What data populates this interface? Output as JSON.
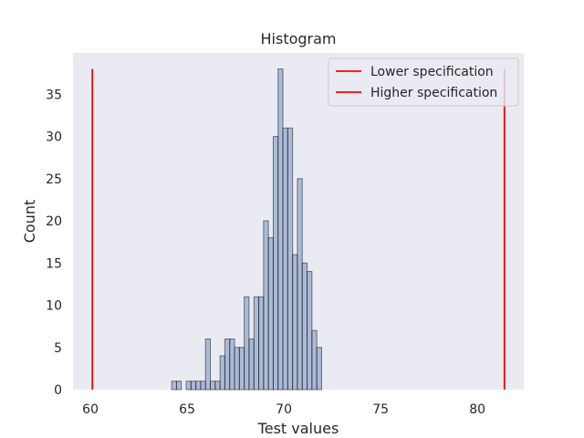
{
  "chart_data": {
    "type": "bar",
    "title": "Histogram",
    "xlabel": "Test values",
    "ylabel": "Count",
    "xlim": [
      59.1,
      82.4
    ],
    "ylim": [
      0,
      39.9
    ],
    "x_ticks": [
      60,
      65,
      70,
      75,
      80
    ],
    "y_ticks": [
      0,
      5,
      10,
      15,
      20,
      25,
      30,
      35
    ],
    "grid": false,
    "bin_width": 0.25,
    "bins": [
      {
        "x0": 64.2,
        "count": 1
      },
      {
        "x0": 64.45,
        "count": 1
      },
      {
        "x0": 64.95,
        "count": 1
      },
      {
        "x0": 65.2,
        "count": 1
      },
      {
        "x0": 65.45,
        "count": 1
      },
      {
        "x0": 65.7,
        "count": 1
      },
      {
        "x0": 65.95,
        "count": 6
      },
      {
        "x0": 66.2,
        "count": 1
      },
      {
        "x0": 66.45,
        "count": 1
      },
      {
        "x0": 66.7,
        "count": 4
      },
      {
        "x0": 66.95,
        "count": 6
      },
      {
        "x0": 67.2,
        "count": 6
      },
      {
        "x0": 67.45,
        "count": 5
      },
      {
        "x0": 67.7,
        "count": 5
      },
      {
        "x0": 67.95,
        "count": 11
      },
      {
        "x0": 68.2,
        "count": 6
      },
      {
        "x0": 68.45,
        "count": 11
      },
      {
        "x0": 68.7,
        "count": 11
      },
      {
        "x0": 68.95,
        "count": 20
      },
      {
        "x0": 69.2,
        "count": 18
      },
      {
        "x0": 69.45,
        "count": 30
      },
      {
        "x0": 69.7,
        "count": 38
      },
      {
        "x0": 69.95,
        "count": 31
      },
      {
        "x0": 70.2,
        "count": 31
      },
      {
        "x0": 70.45,
        "count": 16
      },
      {
        "x0": 70.7,
        "count": 25
      },
      {
        "x0": 70.95,
        "count": 15
      },
      {
        "x0": 71.2,
        "count": 14
      },
      {
        "x0": 71.45,
        "count": 7
      },
      {
        "x0": 71.7,
        "count": 5
      }
    ],
    "spec_lines": [
      {
        "name": "Lower specification",
        "x": 60.1,
        "color": "#ff0000"
      },
      {
        "name": "Higher specification",
        "x": 81.4,
        "color": "#ff0000"
      }
    ],
    "bar_color": "#4c72b0",
    "bar_edge_color": "#1a1a1a",
    "plot_background": "#eaeaf2",
    "legend_position": "top-right"
  }
}
